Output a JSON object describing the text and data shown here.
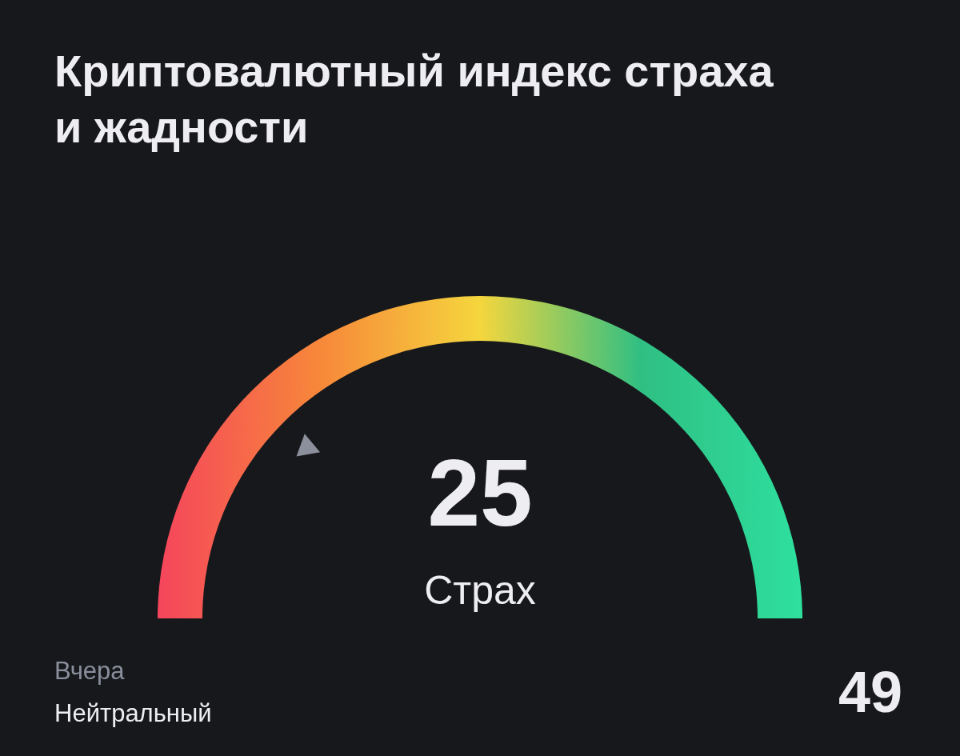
{
  "chart_data": {
    "type": "other",
    "title": [
      "Криптовалютный индекс страха",
      "и жадности"
    ],
    "values": [
      25
    ],
    "data_labels": true,
    "annotations": [
      "Страх",
      "Вчера",
      "Нейтральный",
      "49"
    ]
  }
}
